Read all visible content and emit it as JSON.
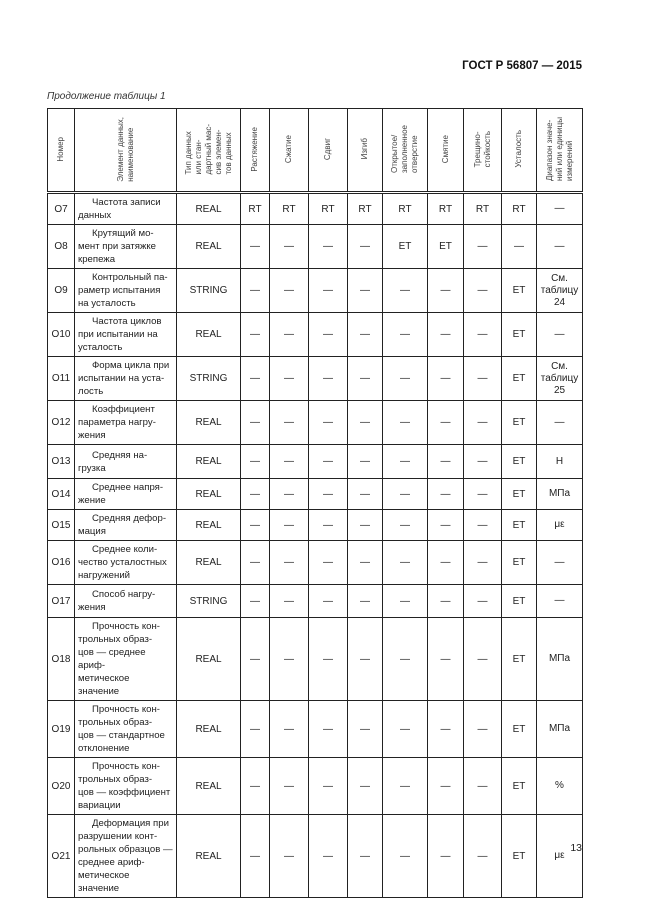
{
  "header": {
    "doc_code": "ГОСТ Р 56807 — 2015"
  },
  "caption": "Продолжение таблицы 1",
  "table": {
    "columns": [
      "Номер",
      "Элемент данных,\nнаименование",
      "Тип данных\nили стан-\nдартный мас-\nсив элемен-\nтов данных",
      "Растяжение",
      "Сжатие",
      "Сдвиг",
      "Изгиб",
      "Открытое/\nзаполненное\nотверстие",
      "Смятие",
      "Трещино-\nстойкость",
      "Усталость",
      "Диапазон значе-\nний или единицы\nизмерений"
    ],
    "rows": [
      {
        "id": "O7",
        "name": "Частота записи\nданных",
        "type": "REAL",
        "cells": [
          "RT",
          "RT",
          "RT",
          "RT",
          "RT",
          "RT",
          "RT",
          "RT"
        ],
        "range": "—"
      },
      {
        "id": "O8",
        "name": "Крутящий мо-\nмент при затяжке\nкрепежа",
        "type": "REAL",
        "cells": [
          "—",
          "—",
          "—",
          "—",
          "ET",
          "ET",
          "—",
          "—"
        ],
        "range": "—"
      },
      {
        "id": "O9",
        "name": "Контрольный па-\nраметр испытания\nна усталость",
        "type": "STRING",
        "cells": [
          "—",
          "—",
          "—",
          "—",
          "—",
          "—",
          "—",
          "ET"
        ],
        "range": "См.\nтаблицу\n24"
      },
      {
        "id": "O10",
        "name": "Частота циклов\nпри испытании на\nусталость",
        "type": "REAL",
        "cells": [
          "—",
          "—",
          "—",
          "—",
          "—",
          "—",
          "—",
          "ET"
        ],
        "range": "—"
      },
      {
        "id": "O11",
        "name": "Форма цикла при\nиспытании на уста-\nлость",
        "type": "STRING",
        "cells": [
          "—",
          "—",
          "—",
          "—",
          "—",
          "—",
          "—",
          "ET"
        ],
        "range": "См.\nтаблицу\n25"
      },
      {
        "id": "O12",
        "name": "Коэффициент\nпараметра нагру-\nжения",
        "type": "REAL",
        "cells": [
          "—",
          "—",
          "—",
          "—",
          "—",
          "—",
          "—",
          "ET"
        ],
        "range": "—"
      },
      {
        "id": "O13",
        "name": "Средняя на-\nгрузка",
        "type": "REAL",
        "cells": [
          "—",
          "—",
          "—",
          "—",
          "—",
          "—",
          "—",
          "ET"
        ],
        "range": "Н"
      },
      {
        "id": "O14",
        "name": "Среднее напря-\nжение",
        "type": "REAL",
        "cells": [
          "—",
          "—",
          "—",
          "—",
          "—",
          "—",
          "—",
          "ET"
        ],
        "range": "МПа"
      },
      {
        "id": "O15",
        "name": "Средняя дефор-\nмация",
        "type": "REAL",
        "cells": [
          "—",
          "—",
          "—",
          "—",
          "—",
          "—",
          "—",
          "ET"
        ],
        "range": "με"
      },
      {
        "id": "O16",
        "name": "Среднее коли-\nчество усталостных\nнагружений",
        "type": "REAL",
        "cells": [
          "—",
          "—",
          "—",
          "—",
          "—",
          "—",
          "—",
          "ET"
        ],
        "range": "—"
      },
      {
        "id": "O17",
        "name": "Способ нагру-\nжения",
        "type": "STRING",
        "cells": [
          "—",
          "—",
          "—",
          "—",
          "—",
          "—",
          "—",
          "ET"
        ],
        "range": "—"
      },
      {
        "id": "O18",
        "name": "Прочность кон-\nтрольных образ-\nцов — среднее ариф-\nметическое значение",
        "type": "REAL",
        "cells": [
          "—",
          "—",
          "—",
          "—",
          "—",
          "—",
          "—",
          "ET"
        ],
        "range": "МПа"
      },
      {
        "id": "O19",
        "name": "Прочность кон-\nтрольных образ-\nцов — стандартное\nотклонение",
        "type": "REAL",
        "cells": [
          "—",
          "—",
          "—",
          "—",
          "—",
          "—",
          "—",
          "ET"
        ],
        "range": "МПа"
      },
      {
        "id": "O20",
        "name": "Прочность кон-\nтрольных образ-\nцов — коэффициент\nвариации",
        "type": "REAL",
        "cells": [
          "—",
          "—",
          "—",
          "—",
          "—",
          "—",
          "—",
          "ET"
        ],
        "range": "%"
      },
      {
        "id": "O21",
        "name": "Деформация при\nразрушении конт-\nрольных образцов —\nсреднее ариф-\nметическое значение",
        "type": "REAL",
        "cells": [
          "—",
          "—",
          "—",
          "—",
          "—",
          "—",
          "—",
          "ET"
        ],
        "range": "με"
      }
    ]
  },
  "footer": {
    "page_number": "13"
  }
}
